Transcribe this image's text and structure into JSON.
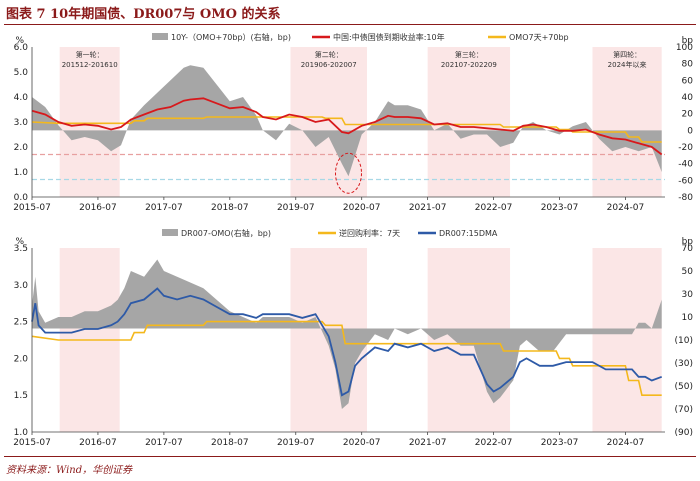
{
  "figure": {
    "title": "图表 7   10年期国债、DR007与 OMO 的关系",
    "source": "资料来源：Wind，华创证券"
  },
  "colors": {
    "spread": "#a6a6a6",
    "cgb10y": "#d7191c",
    "omo_plus": "#f4b81c",
    "dr_avg": "#2e5aa7",
    "shade": "#fbe6e6",
    "dash_red": "#e8a0a0",
    "dash_blue": "#a7d8e6"
  },
  "chart_data": [
    {
      "type": "area",
      "title": "",
      "x_ticks": [
        "2015-07",
        "2016-07",
        "2017-07",
        "2018-07",
        "2019-07",
        "2020-07",
        "2021-07",
        "2022-07",
        "2023-07",
        "2024-07"
      ],
      "y_left": {
        "unit": "%",
        "min": 0.0,
        "max": 6.0,
        "ticks": [
          "0.0",
          "1.0",
          "2.0",
          "3.0",
          "4.0",
          "5.0",
          "6.0"
        ]
      },
      "y_right": {
        "unit": "bp",
        "min": -80,
        "max": 100,
        "ticks": [
          "-80",
          "-60",
          "-40",
          "-20",
          "0",
          "20",
          "40",
          "60",
          "80",
          "100"
        ]
      },
      "legend": [
        "10Y-（OMO+70bp）(右轴，bp)",
        "中国:中债国债到期收益率:10年",
        "OMO7天+70bp"
      ],
      "shaded_periods": [
        {
          "label": "第一轮：",
          "range": "201512-201610",
          "start": 2015.92,
          "end": 2016.83
        },
        {
          "label": "第二轮：",
          "range": "201906-202007",
          "start": 2019.42,
          "end": 2020.58
        },
        {
          "label": "第三轮：",
          "range": "202107-202209",
          "start": 2021.5,
          "end": 2022.75
        },
        {
          "label": "第四轮：",
          "range": "2024年以来",
          "start": 2024.0,
          "end": 2025.05
        }
      ],
      "reference_lines_left": [
        {
          "value": 1.7,
          "style": "dashed",
          "color": "red"
        },
        {
          "value": 0.7,
          "style": "dashed",
          "color": "blue"
        }
      ],
      "annotation": {
        "type": "circle",
        "x": 2020.3,
        "y_left": 0.95
      },
      "series": [
        {
          "name": "中国:中债国债到期收益率:10年",
          "axis": "left",
          "x": [
            2015.5,
            2015.7,
            2015.9,
            2016.1,
            2016.3,
            2016.5,
            2016.7,
            2016.85,
            2017.0,
            2017.2,
            2017.4,
            2017.6,
            2017.8,
            2017.9,
            2018.1,
            2018.3,
            2018.5,
            2018.7,
            2018.9,
            2019.0,
            2019.2,
            2019.4,
            2019.6,
            2019.8,
            2020.0,
            2020.2,
            2020.3,
            2020.5,
            2020.7,
            2020.9,
            2021.0,
            2021.2,
            2021.4,
            2021.6,
            2021.8,
            2022.0,
            2022.2,
            2022.4,
            2022.6,
            2022.8,
            2022.95,
            2023.1,
            2023.3,
            2023.5,
            2023.7,
            2023.9,
            2024.1,
            2024.3,
            2024.5,
            2024.7,
            2024.9,
            2025.05
          ],
          "values": [
            3.45,
            3.3,
            3.0,
            2.85,
            2.9,
            2.85,
            2.7,
            2.8,
            3.1,
            3.3,
            3.5,
            3.6,
            3.85,
            3.9,
            3.95,
            3.75,
            3.55,
            3.6,
            3.4,
            3.2,
            3.1,
            3.3,
            3.2,
            3.0,
            3.1,
            2.6,
            2.55,
            2.85,
            3.0,
            3.25,
            3.2,
            3.2,
            3.15,
            2.9,
            2.95,
            2.8,
            2.8,
            2.75,
            2.7,
            2.65,
            2.85,
            2.9,
            2.8,
            2.65,
            2.65,
            2.7,
            2.5,
            2.35,
            2.3,
            2.15,
            2.0,
            1.7
          ]
        },
        {
          "name": "OMO7天+70bp",
          "axis": "left",
          "x": [
            2015.5,
            2015.9,
            2016.1,
            2017.0,
            2017.05,
            2017.2,
            2017.25,
            2018.1,
            2018.15,
            2019.9,
            2019.95,
            2020.2,
            2020.25,
            2022.6,
            2022.65,
            2023.45,
            2023.5,
            2023.65,
            2023.7,
            2024.5,
            2024.55,
            2024.7,
            2024.75,
            2025.05
          ],
          "values": [
            3.0,
            2.95,
            2.95,
            2.95,
            3.05,
            3.05,
            3.15,
            3.15,
            3.2,
            3.2,
            3.15,
            3.15,
            2.9,
            2.9,
            2.8,
            2.8,
            2.7,
            2.7,
            2.6,
            2.6,
            2.4,
            2.4,
            2.2,
            2.2
          ]
        },
        {
          "name": "10Y-（OMO+70bp）(右轴，bp)",
          "axis": "right",
          "x": [
            2015.5,
            2015.7,
            2015.9,
            2016.1,
            2016.3,
            2016.5,
            2016.7,
            2016.85,
            2017.0,
            2017.2,
            2017.4,
            2017.6,
            2017.8,
            2017.9,
            2018.1,
            2018.3,
            2018.5,
            2018.7,
            2018.9,
            2019.0,
            2019.2,
            2019.4,
            2019.6,
            2019.8,
            2020.0,
            2020.2,
            2020.3,
            2020.5,
            2020.7,
            2020.9,
            2021.0,
            2021.2,
            2021.4,
            2021.6,
            2021.8,
            2022.0,
            2022.2,
            2022.4,
            2022.6,
            2022.8,
            2022.95,
            2023.1,
            2023.3,
            2023.5,
            2023.7,
            2023.9,
            2024.1,
            2024.3,
            2024.5,
            2024.7,
            2024.9,
            2025.05
          ],
          "values": [
            40,
            28,
            6,
            -12,
            -8,
            -12,
            -25,
            -18,
            13,
            30,
            45,
            60,
            75,
            78,
            75,
            55,
            35,
            40,
            18,
            0,
            -12,
            8,
            0,
            -20,
            -8,
            -40,
            -55,
            -5,
            10,
            35,
            30,
            30,
            25,
            0,
            8,
            -10,
            -5,
            -5,
            -20,
            -15,
            5,
            10,
            0,
            -5,
            5,
            10,
            -10,
            -25,
            -20,
            -25,
            -20,
            -50
          ]
        }
      ]
    },
    {
      "type": "area",
      "title": "",
      "x_ticks": [
        "2015-07",
        "2016-07",
        "2017-07",
        "2018-07",
        "2019-07",
        "2020-07",
        "2021-07",
        "2022-07",
        "2023-07",
        "2024-07"
      ],
      "y_left": {
        "unit": "%",
        "min": 1.0,
        "max": 3.5,
        "ticks": [
          "1.0",
          "1.5",
          "2.0",
          "2.5",
          "3.0",
          "3.5"
        ]
      },
      "y_right": {
        "unit": "bp",
        "min": -90,
        "max": 70,
        "ticks": [
          "(90)",
          "(70)",
          "(50)",
          "(30)",
          "(10)",
          "10",
          "30",
          "50",
          "70"
        ]
      },
      "legend": [
        "DR007-OMO(右轴，bp)",
        "逆回购利率：7天",
        "DR007:15DMA"
      ],
      "shaded_periods": [
        {
          "start": 2015.92,
          "end": 2016.83
        },
        {
          "start": 2019.42,
          "end": 2020.58
        },
        {
          "start": 2021.5,
          "end": 2022.75
        },
        {
          "start": 2024.0,
          "end": 2025.05
        }
      ],
      "series": [
        {
          "name": "DR007:15DMA",
          "axis": "left",
          "x": [
            2015.5,
            2015.55,
            2015.6,
            2015.7,
            2015.9,
            2016.1,
            2016.3,
            2016.5,
            2016.7,
            2016.8,
            2016.9,
            2017.0,
            2017.2,
            2017.4,
            2017.5,
            2017.7,
            2017.9,
            2018.1,
            2018.3,
            2018.5,
            2018.7,
            2018.9,
            2019.0,
            2019.2,
            2019.4,
            2019.6,
            2019.8,
            2020.0,
            2020.1,
            2020.2,
            2020.3,
            2020.4,
            2020.5,
            2020.7,
            2020.9,
            2021.0,
            2021.2,
            2021.4,
            2021.6,
            2021.8,
            2022.0,
            2022.2,
            2022.4,
            2022.5,
            2022.6,
            2022.8,
            2022.9,
            2023.0,
            2023.2,
            2023.4,
            2023.6,
            2023.8,
            2024.0,
            2024.2,
            2024.4,
            2024.6,
            2024.7,
            2024.8,
            2024.9,
            2025.05
          ],
          "values": [
            2.5,
            2.75,
            2.45,
            2.35,
            2.35,
            2.35,
            2.4,
            2.4,
            2.45,
            2.5,
            2.6,
            2.75,
            2.8,
            2.95,
            2.85,
            2.8,
            2.85,
            2.8,
            2.7,
            2.6,
            2.6,
            2.55,
            2.6,
            2.6,
            2.6,
            2.55,
            2.6,
            2.3,
            1.95,
            1.5,
            1.55,
            1.9,
            2.0,
            2.15,
            2.1,
            2.2,
            2.15,
            2.2,
            2.1,
            2.15,
            2.05,
            2.05,
            1.65,
            1.55,
            1.6,
            1.75,
            1.95,
            2.0,
            1.9,
            1.9,
            1.95,
            1.95,
            1.95,
            1.85,
            1.85,
            1.85,
            1.75,
            1.75,
            1.7,
            1.75
          ]
        },
        {
          "name": "逆回购利率：7天",
          "axis": "left",
          "x": [
            2015.5,
            2015.9,
            2016.1,
            2017.0,
            2017.05,
            2017.2,
            2017.25,
            2018.1,
            2018.15,
            2019.9,
            2019.95,
            2020.2,
            2020.25,
            2022.6,
            2022.65,
            2023.45,
            2023.5,
            2023.65,
            2023.7,
            2024.5,
            2024.55,
            2024.7,
            2024.75,
            2025.05
          ],
          "values": [
            2.3,
            2.25,
            2.25,
            2.25,
            2.35,
            2.35,
            2.45,
            2.45,
            2.5,
            2.5,
            2.45,
            2.45,
            2.2,
            2.2,
            2.1,
            2.1,
            2.0,
            2.0,
            1.9,
            1.9,
            1.7,
            1.7,
            1.5,
            1.5
          ]
        },
        {
          "name": "DR007-OMO(右轴，bp)",
          "axis": "right",
          "x": [
            2015.5,
            2015.55,
            2015.6,
            2015.7,
            2015.9,
            2016.1,
            2016.3,
            2016.5,
            2016.7,
            2016.8,
            2016.9,
            2017.0,
            2017.2,
            2017.4,
            2017.5,
            2017.7,
            2017.9,
            2018.1,
            2018.3,
            2018.5,
            2018.7,
            2018.9,
            2019.0,
            2019.2,
            2019.4,
            2019.6,
            2019.8,
            2020.0,
            2020.1,
            2020.2,
            2020.3,
            2020.4,
            2020.5,
            2020.7,
            2020.9,
            2021.0,
            2021.2,
            2021.4,
            2021.6,
            2021.8,
            2022.0,
            2022.2,
            2022.4,
            2022.5,
            2022.6,
            2022.8,
            2022.9,
            2023.0,
            2023.2,
            2023.4,
            2023.6,
            2023.8,
            2024.0,
            2024.2,
            2024.4,
            2024.6,
            2024.7,
            2024.8,
            2024.9,
            2025.05
          ],
          "values": [
            20,
            45,
            15,
            5,
            10,
            10,
            15,
            15,
            20,
            25,
            35,
            50,
            45,
            60,
            50,
            45,
            40,
            35,
            25,
            15,
            10,
            5,
            10,
            10,
            10,
            5,
            10,
            -15,
            -35,
            -70,
            -65,
            -30,
            -20,
            -5,
            -10,
            0,
            -5,
            0,
            -10,
            -5,
            -15,
            -15,
            -55,
            -65,
            -60,
            -45,
            -15,
            -10,
            -20,
            -20,
            -5,
            -5,
            -5,
            -5,
            -5,
            -5,
            5,
            5,
            0,
            25
          ]
        }
      ]
    }
  ]
}
